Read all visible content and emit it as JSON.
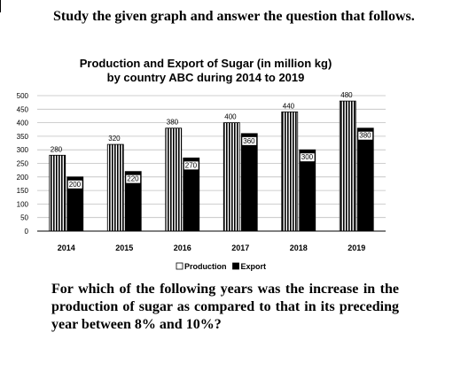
{
  "prompt": "Study the given graph and answer the question that follows.",
  "question": "For which of the following years was the increase in the production of sugar as compared to that in its preceding year between 8% and 10%?",
  "chart_data": {
    "type": "bar",
    "title_line1": "Production and Export of Sugar (in million kg)",
    "title_line2": "by country ABC during 2014 to 2019",
    "categories": [
      "2014",
      "2015",
      "2016",
      "2017",
      "2018",
      "2019"
    ],
    "series": [
      {
        "name": "Production",
        "values": [
          280,
          320,
          380,
          400,
          440,
          480
        ],
        "pattern": "vertical-stripes",
        "color": "#000000"
      },
      {
        "name": "Export",
        "values": [
          200,
          220,
          270,
          360,
          300,
          380
        ],
        "pattern": "solid",
        "color": "#000000"
      }
    ],
    "yticks": [
      0,
      50,
      100,
      150,
      200,
      250,
      300,
      350,
      400,
      450,
      500
    ],
    "ylim": [
      0,
      500
    ],
    "grid": true,
    "legend_position": "bottom"
  }
}
